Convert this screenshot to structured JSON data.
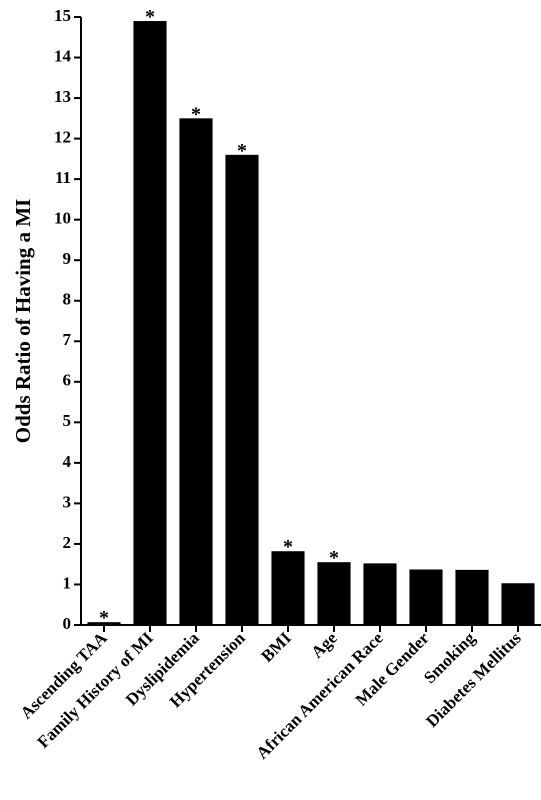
{
  "chart_data": {
    "type": "bar",
    "y_label": "Odds Ratio of Having a MI",
    "categories": [
      "Ascending TAA",
      "Family History of MI",
      "Dyslipidemia",
      "Hypertension",
      "BMI",
      "Age",
      "African American Race",
      "Male Gender",
      "Smoking",
      "Diabetes Mellitus"
    ],
    "values": [
      0.07,
      14.9,
      12.5,
      11.6,
      1.82,
      1.55,
      1.52,
      1.37,
      1.36,
      1.03
    ],
    "markers": [
      "*",
      "*",
      "*",
      "*",
      "*",
      "*",
      null,
      null,
      null,
      null
    ],
    "color": "#000000",
    "ylim": [
      0,
      15
    ],
    "yticks": [
      0,
      1,
      2,
      3,
      4,
      5,
      6,
      7,
      8,
      9,
      10,
      11,
      12,
      13,
      14,
      15
    ],
    "grid": false
  }
}
